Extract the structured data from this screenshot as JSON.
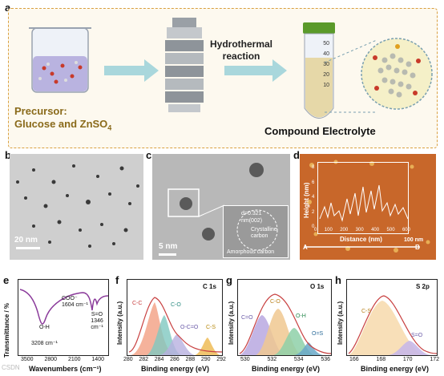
{
  "panel_a": {
    "letter": "a",
    "precursor_title": "Precursor:",
    "precursor_sub": "Glucose and ZnSO",
    "precursor_sub_idx": "4",
    "hydro_line1": "Hydrothermal",
    "hydro_line2": "reaction",
    "tube_ticks": [
      "50",
      "40",
      "30",
      "20",
      "10"
    ],
    "product_label": "Compound Electrolyte"
  },
  "panel_b": {
    "letter": "b",
    "scale": "20 nm"
  },
  "panel_c": {
    "letter": "c",
    "scale": "5 nm",
    "inset_lattice": "d=0.321",
    "inset_unit": "nm(002)",
    "inset_cryst": "Crystalline carbon",
    "inset_amorph": "Amorphous carbon"
  },
  "panel_d": {
    "letter": "d",
    "ylabel": "Height (nm)",
    "xlabel": "Distance (nm)",
    "xticks": [
      "0",
      "100",
      "200",
      "300",
      "400",
      "500",
      "600"
    ],
    "yticks": [
      "0",
      "2",
      "4",
      "6",
      "8"
    ],
    "marker_A": "A",
    "marker_B": "B",
    "scale": "100 nm"
  },
  "panel_e": {
    "letter": "e",
    "ylabel": "Transmittance / %",
    "xlabel": "Wavenumbers (cm⁻¹)",
    "xticks": [
      "3500",
      "2800",
      "2100",
      "1400"
    ],
    "ann_oh_1": "O-H",
    "ann_oh_2": "3208 cm⁻¹",
    "ann_coo_1": "COO⁻",
    "ann_coo_2": "1604 cm⁻¹",
    "ann_so_1": "S=O",
    "ann_so_2": "1346 cm⁻¹"
  },
  "panel_f": {
    "letter": "f",
    "title": "C 1s",
    "ylabel": "Intensity (a.u.)",
    "xlabel": "Binding energy (eV)",
    "xticks": [
      "280",
      "282",
      "284",
      "286",
      "288",
      "290",
      "292"
    ],
    "peaks": [
      "C-C",
      "C-O",
      "O-C=O",
      "C-S"
    ]
  },
  "panel_g": {
    "letter": "g",
    "title": "O 1s",
    "ylabel": "Intensity (a.u.)",
    "xlabel": "Binding energy (eV)",
    "xticks": [
      "530",
      "532",
      "534",
      "536"
    ],
    "peaks": [
      "C=O",
      "C-O",
      "O-H",
      "O=S"
    ]
  },
  "panel_h": {
    "letter": "h",
    "title": "S 2p",
    "ylabel": "Intensity (a.u.)",
    "xlabel": "Binding energy (eV)",
    "xticks": [
      "166",
      "168",
      "170",
      "172"
    ],
    "peaks": [
      "C-S",
      "S=O"
    ]
  },
  "watermark": "CSDN"
}
